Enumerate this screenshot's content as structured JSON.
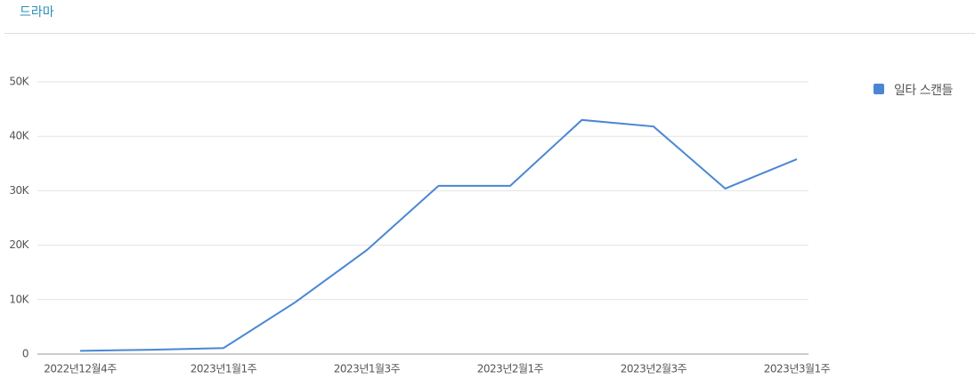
{
  "header": {
    "title": "드라마"
  },
  "chart_data": {
    "type": "line",
    "categories": [
      "2022년12월4주",
      null,
      "2023년1월1주",
      null,
      "2023년1월3주",
      null,
      "2023년2월1주",
      null,
      "2023년2월3주",
      null,
      "2023년3월1주"
    ],
    "series": [
      {
        "name": "일타 스캔들",
        "color": "#4a86d4",
        "values": [
          600,
          800,
          1100,
          9500,
          19100,
          30900,
          30900,
          43000,
          41800,
          30400,
          35800
        ]
      }
    ],
    "ylim": [
      0,
      50000
    ],
    "yticks": [
      0,
      {
        "value": 10000,
        "label": "10K"
      },
      {
        "value": 20000,
        "label": "20K"
      },
      {
        "value": 30000,
        "label": "30K"
      },
      {
        "value": 40000,
        "label": "40K"
      },
      {
        "value": 50000,
        "label": "50K"
      }
    ],
    "grid": true,
    "legend": "right"
  }
}
